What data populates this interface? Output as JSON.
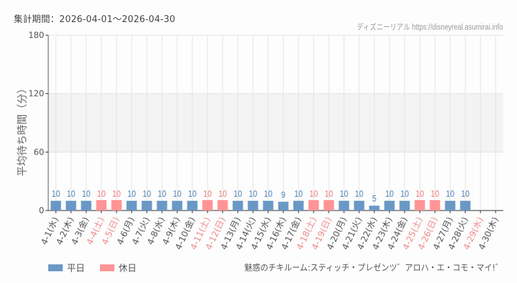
{
  "header": {
    "period_label": "集計期間：2026-04-01～2026-04-30",
    "site_label": "ディズニーリアル https://disneyreal.asumirai.info"
  },
  "legend": {
    "items": [
      {
        "label": "平日",
        "color": "#6a98c5"
      },
      {
        "label": "休日",
        "color": "#ff9496"
      }
    ]
  },
  "footer": {
    "attraction_name": "魅惑のチキルーム:スティッチ・プレゼンツ゛アロハ・エ・コモ・マイ!゛"
  },
  "colors": {
    "weekday": "#6a98c5",
    "holiday": "#ff9496",
    "weekday_text": "#4a80b8",
    "holiday_text": "#f0787a",
    "axis_text": "#555555",
    "holiday_label_text": "#f08a8c",
    "grid": "#e3e3e3",
    "band": "#f2f3f2"
  },
  "chart_data": {
    "type": "bar",
    "title": "",
    "xlabel": "",
    "ylabel": "平均待ち時間（分）",
    "ylim": [
      0,
      180
    ],
    "yticks": [
      0,
      60,
      120,
      180
    ],
    "grid": true,
    "shaded_band": [
      60,
      120
    ],
    "legend_position": "bottom-left",
    "categories": [
      "4-1(水)",
      "4-2(木)",
      "4-3(金)",
      "4-4(土)",
      "4-5(日)",
      "4-6(月)",
      "4-7(火)",
      "4-8(水)",
      "4-9(木)",
      "4-10(金)",
      "4-11(土)",
      "4-12(日)",
      "4-13(月)",
      "4-14(火)",
      "4-15(水)",
      "4-16(木)",
      "4-17(金)",
      "4-18(土)",
      "4-19(日)",
      "4-20(月)",
      "4-21(火)",
      "4-22(水)",
      "4-23(木)",
      "4-24(金)",
      "4-25(土)",
      "4-26(日)",
      "4-27(月)",
      "4-28(火)",
      "4-29(水)",
      "4-30(木)"
    ],
    "values": [
      10,
      10,
      10,
      10,
      10,
      10,
      10,
      10,
      10,
      10,
      10,
      10,
      10,
      10,
      10,
      9,
      10,
      10,
      10,
      10,
      10,
      5,
      10,
      10,
      10,
      10,
      10,
      10,
      null,
      null
    ],
    "day_type": [
      "平日",
      "平日",
      "平日",
      "休日",
      "休日",
      "平日",
      "平日",
      "平日",
      "平日",
      "平日",
      "休日",
      "休日",
      "平日",
      "平日",
      "平日",
      "平日",
      "平日",
      "休日",
      "休日",
      "平日",
      "平日",
      "平日",
      "平日",
      "平日",
      "休日",
      "休日",
      "平日",
      "平日",
      "休日",
      "平日"
    ],
    "series": [
      {
        "name": "平日",
        "color": "#6a98c5"
      },
      {
        "name": "休日",
        "color": "#ff9496"
      }
    ]
  }
}
